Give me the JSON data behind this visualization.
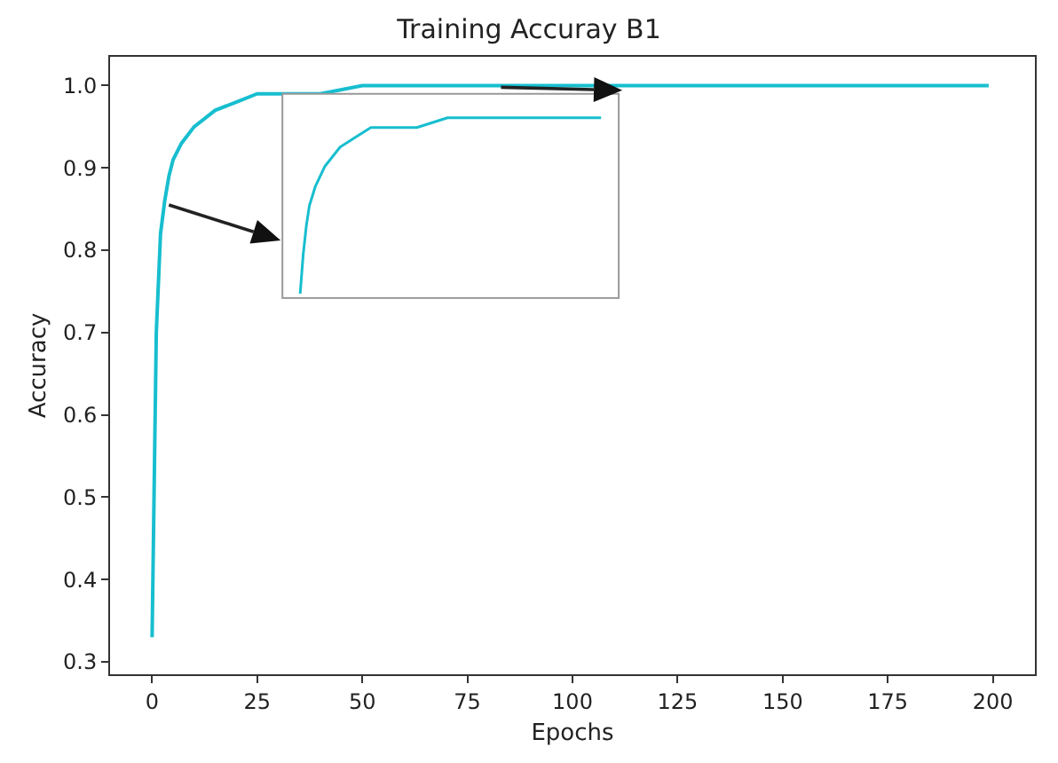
{
  "chart_data": [
    {
      "type": "line",
      "title": "Training Accuray B1",
      "xlabel": "Epochs",
      "ylabel": "Accuracy",
      "x": [
        0,
        1,
        2,
        3,
        4,
        5,
        7,
        10,
        15,
        20,
        25,
        30,
        40,
        50,
        60,
        75,
        100,
        125,
        150,
        175,
        199
      ],
      "series": [
        {
          "color": "#17becf",
          "values": [
            0.33,
            0.7,
            0.82,
            0.86,
            0.89,
            0.91,
            0.93,
            0.95,
            0.97,
            0.98,
            0.99,
            0.99,
            0.99,
            1.0,
            1.0,
            1.0,
            1.0,
            1.0,
            1.0,
            1.0,
            1.0
          ]
        }
      ],
      "xlim": [
        -10,
        210
      ],
      "ylim": [
        0.285,
        1.035
      ],
      "xticks": [
        0,
        25,
        50,
        75,
        100,
        125,
        150,
        175,
        200
      ],
      "yticks": [
        {
          "value": 0.3,
          "label": "0.3"
        },
        {
          "value": 0.4,
          "label": "0.4"
        },
        {
          "value": 0.5,
          "label": "0.5"
        },
        {
          "value": 0.6,
          "label": "0.6"
        },
        {
          "value": 0.7,
          "label": "0.7"
        },
        {
          "value": 0.8,
          "label": "0.8"
        },
        {
          "value": 0.9,
          "label": "0.9"
        },
        {
          "value": 1,
          "label": "1.0"
        }
      ]
    }
  ]
}
